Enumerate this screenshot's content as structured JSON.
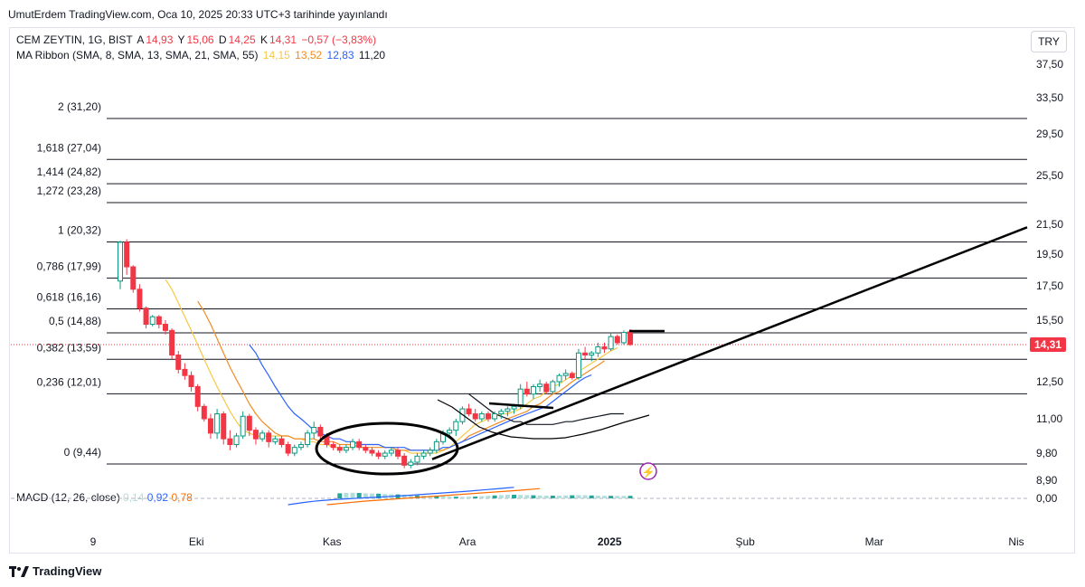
{
  "header": {
    "publish_line": "UmutErdem TradingView.com, Oca 10, 2025 20:33 UTC+3 tarihinde yayınlandı"
  },
  "legend": {
    "symbol": "CEM ZEYTIN, 1G, BIST",
    "open_label": "A",
    "open": "14,93",
    "high_label": "Y",
    "high": "15,06",
    "low_label": "D",
    "low": "14,25",
    "close_label": "K",
    "close": "14,31",
    "change": "−0,57 (−3,83%)",
    "ribbon_label": "MA Ribbon (SMA, 8, SMA, 13, SMA, 21, SMA, 55)",
    "ma8": "14,15",
    "ma13": "13,52",
    "ma21": "12,83",
    "ma55": "11,20"
  },
  "currency_button": "TRY",
  "macd": {
    "label": "MACD (12, 26, close)",
    "hist": "0,14",
    "macd": "0,92",
    "signal": "0,78",
    "zero_label": "0,00"
  },
  "brand": "TradingView",
  "colors": {
    "up": "#089981",
    "down": "#f23645",
    "ma8": "#f7c844",
    "ma13": "#f28b22",
    "ma21": "#2962ff",
    "ma55": "#131722",
    "macd": "#2962ff",
    "signal": "#ff6d00",
    "price_tag": "#f23645"
  },
  "chart_data": {
    "type": "candlestick",
    "price_axis": [
      "37,50",
      "33,50",
      "29,50",
      "25,50",
      "21,50",
      "19,50",
      "17,50",
      "15,50",
      "12,50",
      "11,00",
      "9,80",
      "8,90"
    ],
    "price_axis_values": [
      37.5,
      33.5,
      29.5,
      25.5,
      21.5,
      19.5,
      17.5,
      15.5,
      12.5,
      11.0,
      9.8,
      8.9
    ],
    "last_price_label": "14,31",
    "last_price": 14.31,
    "ylim": [
      8.9,
      37.5
    ],
    "time_axis": [
      {
        "label": "9",
        "bar": 0
      },
      {
        "label": "Eki",
        "bar": 16
      },
      {
        "label": "Kas",
        "bar": 37
      },
      {
        "label": "Ara",
        "bar": 58
      },
      {
        "label": "2025",
        "bar": 80,
        "bold": true
      },
      {
        "label": "Şub",
        "bar": 101
      },
      {
        "label": "Mar",
        "bar": 121
      },
      {
        "label": "Nis",
        "bar": 143
      }
    ],
    "fib_levels": [
      {
        "label": "2 (31,20)",
        "value": 31.2
      },
      {
        "label": "1,618 (27,04)",
        "value": 27.04
      },
      {
        "label": "1,414 (24,82)",
        "value": 24.82
      },
      {
        "label": "1,272 (23,28)",
        "value": 23.28
      },
      {
        "label": "1 (20,32)",
        "value": 20.32
      },
      {
        "label": "0,786 (17,99)",
        "value": 17.99
      },
      {
        "label": "0,618 (16,16)",
        "value": 16.16
      },
      {
        "label": "0,5 (14,88)",
        "value": 14.88
      },
      {
        "label": "0,382 (13,59)",
        "value": 13.59
      },
      {
        "label": "0,236 (12,01)",
        "value": 12.01
      },
      {
        "label": "0 (9,44)",
        "value": 9.44
      }
    ],
    "candles": [
      [
        17.8,
        20.4,
        17.3,
        20.3
      ],
      [
        20.3,
        20.5,
        18.2,
        18.7
      ],
      [
        18.7,
        18.8,
        17.1,
        17.3
      ],
      [
        17.3,
        17.6,
        16.0,
        16.2
      ],
      [
        16.2,
        16.3,
        15.1,
        15.3
      ],
      [
        15.3,
        15.8,
        15.2,
        15.7
      ],
      [
        15.7,
        15.8,
        15.1,
        15.3
      ],
      [
        15.3,
        15.5,
        14.8,
        15.0
      ],
      [
        15.0,
        15.1,
        13.6,
        13.8
      ],
      [
        13.8,
        14.0,
        12.9,
        13.1
      ],
      [
        13.1,
        13.4,
        12.6,
        12.8
      ],
      [
        12.8,
        13.0,
        12.1,
        12.3
      ],
      [
        12.3,
        12.4,
        11.3,
        11.5
      ],
      [
        11.5,
        11.6,
        10.9,
        11.0
      ],
      [
        11.0,
        11.2,
        10.3,
        10.5
      ],
      [
        10.5,
        11.4,
        10.3,
        11.2
      ],
      [
        11.2,
        11.3,
        10.1,
        10.3
      ],
      [
        10.3,
        10.6,
        9.9,
        10.1
      ],
      [
        10.1,
        10.5,
        10.0,
        10.4
      ],
      [
        10.4,
        11.3,
        10.3,
        11.1
      ],
      [
        11.1,
        11.2,
        10.4,
        10.6
      ],
      [
        10.6,
        10.7,
        10.1,
        10.3
      ],
      [
        10.3,
        10.6,
        10.2,
        10.5
      ],
      [
        10.5,
        10.6,
        10.0,
        10.2
      ],
      [
        10.2,
        10.4,
        10.1,
        10.3
      ],
      [
        10.3,
        10.4,
        10.0,
        10.1
      ],
      [
        10.1,
        10.2,
        9.7,
        9.8
      ],
      [
        9.8,
        10.1,
        9.7,
        10.0
      ],
      [
        10.0,
        10.2,
        9.9,
        10.1
      ],
      [
        10.1,
        10.6,
        10.0,
        10.5
      ],
      [
        10.5,
        10.9,
        10.3,
        10.7
      ],
      [
        10.7,
        10.8,
        10.3,
        10.4
      ],
      [
        10.4,
        10.5,
        10.0,
        10.1
      ],
      [
        10.1,
        10.2,
        9.9,
        10.0
      ],
      [
        10.0,
        10.1,
        9.8,
        9.9
      ],
      [
        9.9,
        10.1,
        9.8,
        10.0
      ],
      [
        10.0,
        10.3,
        9.9,
        10.2
      ],
      [
        10.2,
        10.3,
        9.9,
        10.0
      ],
      [
        10.0,
        10.1,
        9.8,
        9.9
      ],
      [
        9.9,
        10.0,
        9.7,
        9.8
      ],
      [
        9.8,
        9.9,
        9.6,
        9.7
      ],
      [
        9.7,
        9.9,
        9.6,
        9.8
      ],
      [
        9.8,
        10.0,
        9.7,
        9.9
      ],
      [
        9.9,
        10.0,
        9.6,
        9.7
      ],
      [
        9.7,
        9.8,
        9.3,
        9.4
      ],
      [
        9.4,
        9.6,
        9.3,
        9.5
      ],
      [
        9.5,
        9.8,
        9.4,
        9.7
      ],
      [
        9.7,
        9.9,
        9.6,
        9.8
      ],
      [
        9.8,
        10.0,
        9.7,
        9.9
      ],
      [
        9.9,
        10.3,
        9.8,
        10.2
      ],
      [
        10.2,
        10.6,
        10.1,
        10.5
      ],
      [
        10.5,
        10.7,
        10.3,
        10.6
      ],
      [
        10.6,
        11.0,
        10.4,
        10.9
      ],
      [
        10.9,
        11.5,
        10.8,
        11.4
      ],
      [
        11.4,
        11.6,
        11.1,
        11.2
      ],
      [
        11.2,
        11.4,
        10.9,
        11.0
      ],
      [
        11.0,
        11.3,
        10.9,
        11.2
      ],
      [
        11.2,
        11.3,
        10.9,
        11.0
      ],
      [
        11.0,
        11.3,
        10.9,
        11.2
      ],
      [
        11.2,
        11.4,
        11.0,
        11.3
      ],
      [
        11.3,
        11.5,
        11.1,
        11.4
      ],
      [
        11.4,
        11.6,
        11.2,
        11.5
      ],
      [
        11.5,
        12.4,
        11.4,
        12.2
      ],
      [
        12.2,
        12.5,
        11.9,
        12.0
      ],
      [
        12.0,
        12.4,
        11.8,
        12.3
      ],
      [
        12.3,
        12.6,
        12.1,
        12.4
      ],
      [
        12.4,
        12.5,
        12.0,
        12.1
      ],
      [
        12.1,
        12.6,
        12.0,
        12.5
      ],
      [
        12.5,
        12.9,
        12.3,
        12.8
      ],
      [
        12.8,
        13.1,
        12.6,
        12.9
      ],
      [
        12.9,
        13.0,
        12.6,
        12.7
      ],
      [
        12.7,
        14.1,
        12.6,
        13.9
      ],
      [
        13.9,
        14.2,
        13.6,
        13.8
      ],
      [
        13.8,
        14.0,
        13.5,
        13.9
      ],
      [
        13.9,
        14.4,
        13.7,
        14.2
      ],
      [
        14.2,
        14.4,
        13.9,
        14.1
      ],
      [
        14.1,
        14.9,
        14.0,
        14.7
      ],
      [
        14.7,
        14.8,
        14.3,
        14.4
      ],
      [
        14.4,
        15.0,
        14.3,
        14.9
      ],
      [
        14.93,
        15.06,
        14.25,
        14.31
      ]
    ],
    "ma": {
      "ma8": {
        "start": 7,
        "values": [
          17.9,
          17.3,
          16.5,
          15.7,
          15.0,
          14.3,
          13.6,
          12.9,
          12.3,
          11.8,
          11.3,
          10.9,
          10.6,
          10.5,
          10.4,
          10.4,
          10.4,
          10.4,
          10.4,
          10.4,
          10.3,
          10.3,
          10.2,
          10.2,
          10.1,
          10.1,
          10.0,
          10.0,
          10.0,
          10.0,
          10.1,
          10.1,
          10.1,
          10.1,
          10.0,
          10.0,
          9.9,
          9.9,
          9.8,
          9.8,
          9.8,
          9.8,
          9.8,
          9.9,
          10.0,
          10.2,
          10.4,
          10.6,
          10.8,
          10.9,
          11.0,
          11.1,
          11.2,
          11.2,
          11.3,
          11.4,
          11.6,
          11.8,
          11.9,
          12.1,
          12.3,
          12.4,
          12.6,
          12.8,
          13.0,
          13.2,
          13.4,
          13.6,
          13.8,
          14.0,
          14.15
        ]
      },
      "ma13": {
        "start": 12,
        "values": [
          16.6,
          16.0,
          15.3,
          14.6,
          13.9,
          13.2,
          12.6,
          12.1,
          11.6,
          11.2,
          10.9,
          10.7,
          10.5,
          10.4,
          10.4,
          10.3,
          10.3,
          10.3,
          10.3,
          10.2,
          10.2,
          10.2,
          10.1,
          10.1,
          10.1,
          10.0,
          10.0,
          10.0,
          10.0,
          10.0,
          10.0,
          9.9,
          9.9,
          9.9,
          9.9,
          9.9,
          9.9,
          9.9,
          9.9,
          10.0,
          10.1,
          10.2,
          10.4,
          10.5,
          10.6,
          10.7,
          10.8,
          10.9,
          11.0,
          11.1,
          11.2,
          11.3,
          11.5,
          11.6,
          11.8,
          12.0,
          12.1,
          12.3,
          12.5,
          12.7,
          12.9,
          13.1,
          13.3,
          13.52
        ]
      },
      "ma21": {
        "start": 20,
        "values": [
          14.3,
          13.9,
          13.3,
          12.8,
          12.3,
          11.9,
          11.5,
          11.2,
          11.0,
          10.8,
          10.6,
          10.5,
          10.4,
          10.3,
          10.3,
          10.2,
          10.2,
          10.1,
          10.1,
          10.1,
          10.1,
          10.0,
          10.0,
          10.0,
          10.0,
          9.9,
          9.9,
          9.9,
          9.9,
          9.9,
          10.0,
          10.0,
          10.1,
          10.2,
          10.3,
          10.4,
          10.5,
          10.6,
          10.7,
          10.8,
          10.9,
          11.0,
          11.1,
          11.2,
          11.3,
          11.4,
          11.5,
          11.7,
          11.9,
          12.1,
          12.3,
          12.5,
          12.7,
          12.83
        ]
      },
      "ma55": {
        "start": 54,
        "values": [
          12.0,
          11.8,
          11.6,
          11.4,
          11.2,
          11.1,
          11.0,
          10.9,
          10.9,
          10.8,
          10.8,
          10.8,
          10.8,
          10.8,
          10.85,
          10.9,
          10.9,
          10.95,
          11.0,
          11.05,
          11.1,
          11.15,
          11.2,
          11.2,
          11.2
        ]
      }
    },
    "macd": {
      "histogram": [
        0.28,
        0.3,
        0.31,
        0.3,
        0.28,
        0.27,
        0.26,
        0.24,
        0.23,
        0.22,
        0.2,
        0.18,
        0.16,
        0.15,
        0.14,
        0.13,
        0.12,
        0.1,
        0.09,
        0.08,
        0.09,
        0.1,
        0.12,
        0.14,
        0.16,
        0.18,
        0.2,
        0.2,
        0.19,
        0.18,
        0.17,
        0.16,
        0.15,
        0.15,
        0.15,
        0.16,
        0.17,
        0.18,
        0.17,
        0.16,
        0.15,
        0.14,
        0.14,
        0.14,
        0.14,
        0.14
      ],
      "hist_start": 34,
      "macd_line": [
        -1.0,
        -0.9,
        -0.8,
        -0.7,
        -0.62,
        -0.55,
        -0.5,
        -0.44,
        -0.4,
        -0.36,
        -0.32,
        -0.28,
        -0.24,
        -0.2,
        -0.16,
        -0.12,
        -0.08,
        -0.04,
        0.0,
        0.05,
        0.1,
        0.15,
        0.2,
        0.25,
        0.3,
        0.35,
        0.4,
        0.45,
        0.5,
        0.56,
        0.62,
        0.68,
        0.74,
        0.8,
        0.86,
        0.92
      ],
      "signal_line": [
        -1.0,
        -0.94,
        -0.87,
        -0.8,
        -0.73,
        -0.66,
        -0.6,
        -0.55,
        -0.5,
        -0.45,
        -0.4,
        -0.35,
        -0.3,
        -0.25,
        -0.2,
        -0.15,
        -0.1,
        -0.05,
        0.0,
        0.05,
        0.1,
        0.15,
        0.2,
        0.25,
        0.3,
        0.35,
        0.4,
        0.45,
        0.5,
        0.55,
        0.6,
        0.66,
        0.72,
        0.78
      ],
      "line_start": 26,
      "signal_start": 32
    }
  }
}
